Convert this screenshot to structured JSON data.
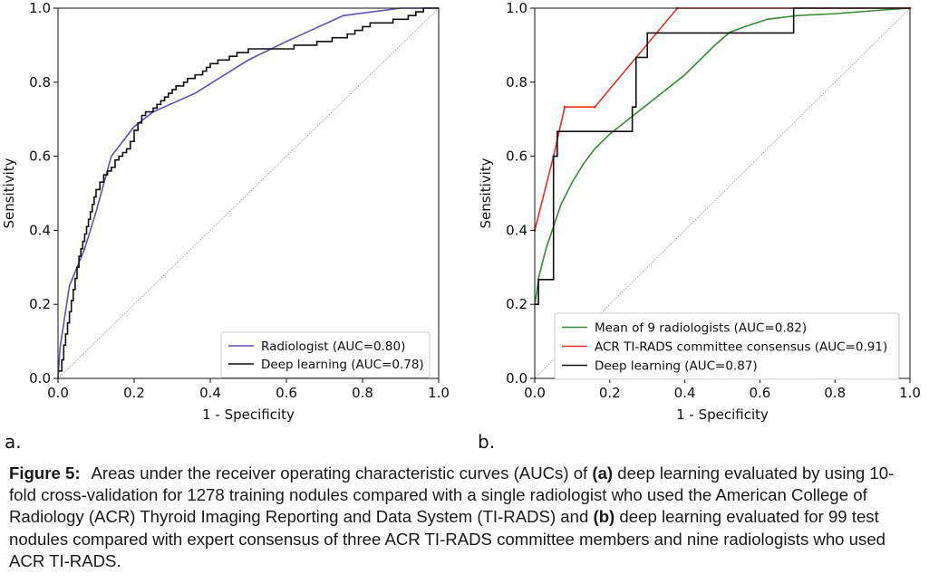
{
  "chart_data": [
    {
      "type": "line",
      "panel_label": "a.",
      "xlabel": "1 - Specificity",
      "ylabel": "Sensitivity",
      "xlim": [
        0.0,
        1.0
      ],
      "ylim": [
        0.0,
        1.0
      ],
      "xticks": [
        "0.0",
        "0.2",
        "0.4",
        "0.6",
        "0.8",
        "1.0"
      ],
      "yticks": [
        "0.0",
        "0.2",
        "0.4",
        "0.6",
        "0.8",
        "1.0"
      ],
      "grid": false,
      "diagonal_reference": true,
      "legend_position": "lower-right",
      "series": [
        {
          "name": "Radiologist (AUC=0.80)",
          "color": "#5b54b5",
          "step": false,
          "x": [
            0.0,
            0.005,
            0.03,
            0.07,
            0.1,
            0.14,
            0.2,
            0.25,
            0.36,
            0.5,
            0.6,
            0.75,
            0.9,
            1.0
          ],
          "y": [
            0.0,
            0.08,
            0.25,
            0.35,
            0.45,
            0.6,
            0.68,
            0.72,
            0.77,
            0.86,
            0.91,
            0.98,
            1.0,
            1.0
          ]
        },
        {
          "name": "Deep learning (AUC=0.78)",
          "color": "#111111",
          "step": true,
          "x": [
            0.0,
            0.01,
            0.015,
            0.02,
            0.025,
            0.03,
            0.035,
            0.04,
            0.045,
            0.05,
            0.055,
            0.06,
            0.065,
            0.07,
            0.075,
            0.08,
            0.085,
            0.09,
            0.095,
            0.1,
            0.11,
            0.12,
            0.13,
            0.14,
            0.15,
            0.16,
            0.17,
            0.18,
            0.19,
            0.2,
            0.21,
            0.22,
            0.23,
            0.24,
            0.25,
            0.26,
            0.27,
            0.28,
            0.29,
            0.3,
            0.31,
            0.32,
            0.33,
            0.34,
            0.35,
            0.36,
            0.37,
            0.38,
            0.39,
            0.4,
            0.41,
            0.42,
            0.43,
            0.44,
            0.45,
            0.46,
            0.47,
            0.48,
            0.49,
            0.5,
            0.52,
            0.54,
            0.56,
            0.58,
            0.6,
            0.62,
            0.64,
            0.66,
            0.68,
            0.7,
            0.72,
            0.74,
            0.76,
            0.78,
            0.8,
            0.82,
            0.84,
            0.86,
            0.88,
            0.9,
            0.92,
            0.93,
            0.94,
            0.95,
            0.96,
            0.97,
            0.98,
            0.99,
            1.0
          ],
          "y": [
            0.02,
            0.05,
            0.09,
            0.12,
            0.15,
            0.18,
            0.21,
            0.24,
            0.27,
            0.3,
            0.33,
            0.35,
            0.37,
            0.39,
            0.41,
            0.43,
            0.45,
            0.47,
            0.49,
            0.51,
            0.53,
            0.55,
            0.56,
            0.57,
            0.59,
            0.6,
            0.61,
            0.62,
            0.64,
            0.67,
            0.69,
            0.71,
            0.72,
            0.72,
            0.73,
            0.74,
            0.75,
            0.76,
            0.77,
            0.78,
            0.79,
            0.79,
            0.8,
            0.81,
            0.81,
            0.82,
            0.82,
            0.83,
            0.84,
            0.85,
            0.85,
            0.86,
            0.86,
            0.86,
            0.87,
            0.87,
            0.88,
            0.88,
            0.88,
            0.89,
            0.89,
            0.89,
            0.89,
            0.89,
            0.89,
            0.9,
            0.9,
            0.9,
            0.91,
            0.91,
            0.92,
            0.92,
            0.93,
            0.94,
            0.95,
            0.96,
            0.96,
            0.96,
            0.97,
            0.97,
            0.98,
            0.98,
            0.99,
            0.99,
            1.0,
            1.0,
            1.0,
            1.0,
            1.0
          ]
        }
      ]
    },
    {
      "type": "line",
      "panel_label": "b.",
      "xlabel": "1 - Specificity",
      "ylabel": "Sensitivity",
      "xlim": [
        0.0,
        1.0
      ],
      "ylim": [
        0.0,
        1.0
      ],
      "xticks": [
        "0.0",
        "0.2",
        "0.4",
        "0.6",
        "0.8",
        "1.0"
      ],
      "yticks": [
        "0.0",
        "0.2",
        "0.4",
        "0.6",
        "0.8",
        "1.0"
      ],
      "grid": false,
      "diagonal_reference": true,
      "legend_position": "lower-right",
      "series": [
        {
          "name": "Mean of 9 radiologists (AUC=0.82)",
          "color": "#3a8a3a",
          "step": false,
          "x": [
            0.0,
            0.005,
            0.01,
            0.02,
            0.03,
            0.05,
            0.07,
            0.1,
            0.13,
            0.16,
            0.2,
            0.25,
            0.3,
            0.35,
            0.4,
            0.44,
            0.48,
            0.52,
            0.56,
            0.62,
            0.7,
            0.8,
            0.9,
            1.0
          ],
          "y": [
            0.2,
            0.23,
            0.27,
            0.31,
            0.35,
            0.41,
            0.47,
            0.53,
            0.58,
            0.62,
            0.66,
            0.7,
            0.74,
            0.78,
            0.82,
            0.86,
            0.9,
            0.935,
            0.95,
            0.97,
            0.98,
            0.985,
            0.993,
            1.0
          ]
        },
        {
          "name": "ACR TI-RADS committee consensus (AUC=0.91)",
          "color": "#e8302a",
          "step": false,
          "x": [
            0.0,
            0.05,
            0.08,
            0.16,
            0.38,
            1.0
          ],
          "y": [
            0.4,
            0.6,
            0.733,
            0.733,
            1.0,
            1.0
          ],
          "markers": [
            [
              0.0,
              0.4
            ],
            [
              0.05,
              0.6
            ],
            [
              0.08,
              0.733
            ],
            [
              0.16,
              0.733
            ],
            [
              0.38,
              1.0
            ],
            [
              1.0,
              1.0
            ]
          ]
        },
        {
          "name": "Deep learning (AUC=0.87)",
          "color": "#111111",
          "step": true,
          "x": [
            0.0,
            0.01,
            0.04,
            0.05,
            0.06,
            0.16,
            0.26,
            0.27,
            0.29,
            0.3,
            0.69,
            1.0
          ],
          "y": [
            0.2,
            0.267,
            0.267,
            0.6,
            0.667,
            0.667,
            0.733,
            0.867,
            0.867,
            0.933,
            1.0,
            1.0
          ]
        }
      ]
    }
  ],
  "caption": {
    "label": "Figure 5:",
    "part1": "Areas under the receiver operating characteristic curves (AUCs) of ",
    "a": "(a)",
    "part2": " deep learning evaluated by using 10-fold cross-validation for 1278 training nodules compared with a single radiologist who used the American College of Radiology (ACR) Thyroid Imaging Reporting and Data System (TI-RADS) and ",
    "b": "(b)",
    "part3": " deep learning evaluated for 99 test nodules compared with expert consensus of three ACR TI-RADS committee members and nine radiologists who used ACR TI-RADS."
  }
}
